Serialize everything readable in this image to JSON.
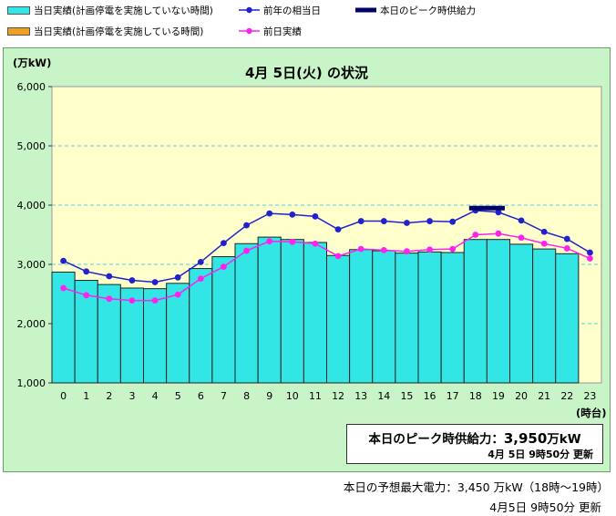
{
  "legend": [
    {
      "key": "cur_not",
      "label": "当日実績(計画停電を実施していない時間)",
      "color": "#33e6e6",
      "kind": "box"
    },
    {
      "key": "cur_imp",
      "label": "当日実績(計画停電を実施している時間)",
      "color": "#f0a020",
      "kind": "box"
    },
    {
      "key": "prev_year",
      "label": "前年の相当日",
      "color": "#2222cc",
      "kind": "line"
    },
    {
      "key": "peak",
      "label": "本日のピーク時供給力",
      "color": "#000066",
      "kind": "bar"
    },
    {
      "key": "prev_day",
      "label": "前日実績",
      "color": "#ff22ee",
      "kind": "line"
    }
  ],
  "chart_data": {
    "type": "bar",
    "title": "4月 5日(火) の状況",
    "ylabel": "(万kW)",
    "xlabel": "(時台)",
    "ylim": [
      1000,
      6000
    ],
    "yticks": [
      1000,
      2000,
      3000,
      4000,
      5000,
      6000
    ],
    "ytick_labels": [
      "1,000",
      "2,000",
      "3,000",
      "4,000",
      "5,000",
      "6,000"
    ],
    "categories": [
      "0",
      "1",
      "2",
      "3",
      "4",
      "5",
      "6",
      "7",
      "8",
      "9",
      "10",
      "11",
      "12",
      "13",
      "14",
      "15",
      "16",
      "17",
      "18",
      "19",
      "20",
      "21",
      "22",
      "23"
    ],
    "series": [
      {
        "name": "当日実績(計画停電を実施していない時間)",
        "type": "bar",
        "color": "#33e6e6",
        "values": [
          2870,
          2730,
          2660,
          2600,
          2590,
          2680,
          2930,
          3130,
          3350,
          3460,
          3420,
          3370,
          3150,
          3250,
          3230,
          3190,
          3210,
          3200,
          3420,
          3420,
          3340,
          3260,
          3180,
          null
        ]
      },
      {
        "name": "前年の相当日",
        "type": "line",
        "color": "#2222cc",
        "values": [
          3060,
          2880,
          2800,
          2730,
          2700,
          2780,
          3040,
          3360,
          3660,
          3860,
          3840,
          3810,
          3590,
          3730,
          3730,
          3700,
          3730,
          3720,
          3910,
          3880,
          3740,
          3550,
          3430,
          3200
        ]
      },
      {
        "name": "前日実績",
        "type": "line",
        "color": "#ff22ee",
        "values": [
          2600,
          2480,
          2420,
          2390,
          2390,
          2490,
          2760,
          2960,
          3230,
          3390,
          3380,
          3350,
          3140,
          3260,
          3240,
          3220,
          3250,
          3260,
          3500,
          3520,
          3450,
          3350,
          3270,
          3100
        ]
      }
    ],
    "peak_supply": {
      "label": "本日のピーク時供給力",
      "value": 3950,
      "hours": [
        18,
        19
      ],
      "color": "#000066"
    }
  },
  "peak_box": {
    "label": "本日のピーク時供給力：",
    "value": "3,950",
    "unit": "万kW",
    "updated": "4月  5日   9時50分  更新"
  },
  "footer": {
    "forecast": "本日の予想最大電力：3,450 万kW（18時～19時）",
    "updated": "4月5日  9時50分  更新"
  }
}
